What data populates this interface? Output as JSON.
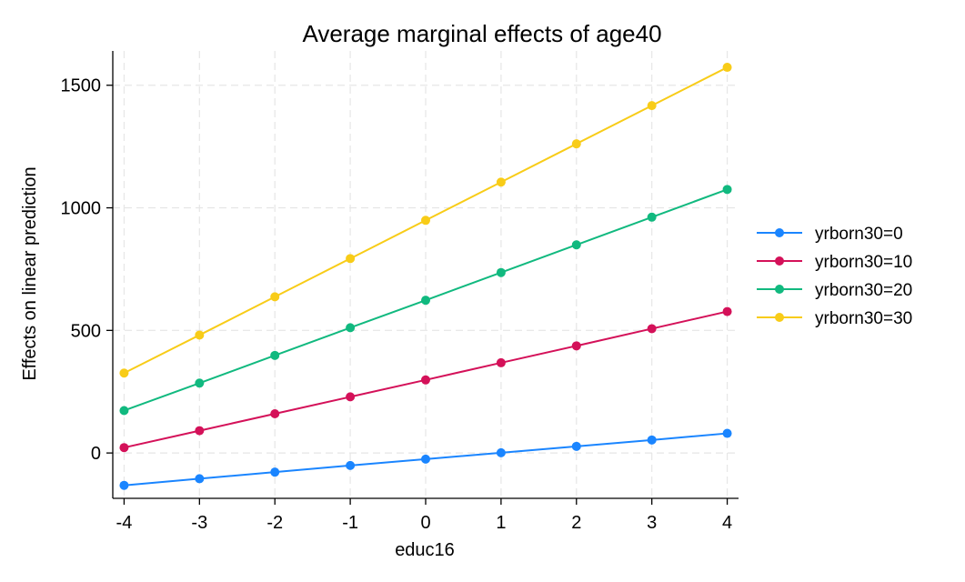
{
  "chart_data": {
    "type": "line",
    "title": "Average marginal effects of age40",
    "xlabel": "educ16",
    "ylabel": "Effects on linear prediction",
    "x": [
      -4,
      -3,
      -2,
      -1,
      0,
      1,
      2,
      3,
      4
    ],
    "x_ticks": [
      "-4",
      "-3",
      "-2",
      "-1",
      "0",
      "1",
      "2",
      "3",
      "4"
    ],
    "y_ticks": [
      0,
      500,
      1000,
      1500
    ],
    "y_tick_labels": [
      "0",
      "500",
      "1000",
      "1500"
    ],
    "xlim": [
      -4.15,
      4.15
    ],
    "ylim": [
      -185,
      1640
    ],
    "grid": true,
    "legend_position": "right",
    "series": [
      {
        "name": "yrborn30=0",
        "color": "#1a85ff",
        "values": [
          -132,
          -105,
          -78,
          -51,
          -25,
          1,
          27,
          53,
          80
        ]
      },
      {
        "name": "yrborn30=10",
        "color": "#d41159",
        "values": [
          22,
          91,
          160,
          229,
          298,
          368,
          437,
          507,
          577
        ]
      },
      {
        "name": "yrborn30=20",
        "color": "#11b97f",
        "values": [
          173,
          285,
          398,
          511,
          623,
          736,
          849,
          962,
          1075
        ]
      },
      {
        "name": "yrborn30=30",
        "color": "#f8cc18",
        "values": [
          326,
          481,
          637,
          793,
          949,
          1105,
          1261,
          1417,
          1573
        ]
      }
    ]
  }
}
